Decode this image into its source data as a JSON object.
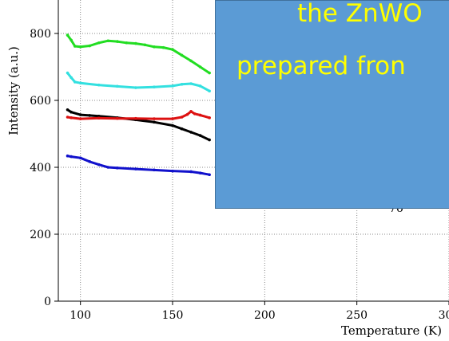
{
  "chart_data": {
    "type": "scatter",
    "xlabel": "Temperature (K)",
    "ylabel": "Intensity (a.u.)",
    "xlim": [
      88,
      300
    ],
    "ylim": [
      0,
      900
    ],
    "x_ticks": [
      100,
      150,
      200,
      250,
      300
    ],
    "y_ticks": [
      0,
      200,
      400,
      600,
      800
    ],
    "x_tick_labels": [
      "100",
      "150",
      "200",
      "250",
      "300"
    ],
    "y_tick_labels": [
      "0",
      "200",
      "400",
      "600",
      "800"
    ],
    "grid": true,
    "series": [
      {
        "color": "#22dd22",
        "x": [
          93,
          95,
          97,
          100,
          105,
          110,
          115,
          120,
          125,
          130,
          135,
          140,
          145,
          150,
          155,
          160,
          165,
          170
        ],
        "y": [
          795,
          780,
          762,
          760,
          763,
          772,
          778,
          776,
          772,
          770,
          766,
          760,
          758,
          752,
          735,
          718,
          700,
          682
        ]
      },
      {
        "color": "#33e0e0",
        "x": [
          93,
          95,
          97,
          100,
          110,
          120,
          130,
          140,
          150,
          155,
          160,
          165,
          170
        ],
        "y": [
          682,
          668,
          655,
          652,
          646,
          642,
          638,
          640,
          643,
          648,
          650,
          643,
          628
        ]
      },
      {
        "color": "#000000",
        "x": [
          93,
          95,
          100,
          105,
          110,
          120,
          130,
          140,
          150,
          155,
          160,
          165,
          170
        ],
        "y": [
          572,
          565,
          557,
          555,
          553,
          548,
          542,
          535,
          525,
          515,
          505,
          495,
          482
        ]
      },
      {
        "color": "#dd1111",
        "x": [
          93,
          95,
          100,
          110,
          120,
          130,
          140,
          150,
          155,
          158,
          160,
          162,
          165,
          170
        ],
        "y": [
          550,
          548,
          545,
          547,
          546,
          546,
          545,
          545,
          550,
          558,
          567,
          560,
          556,
          548
        ]
      },
      {
        "color": "#1111cc",
        "x": [
          93,
          95,
          100,
          105,
          110,
          115,
          120,
          130,
          140,
          150,
          160,
          165,
          170
        ],
        "y": [
          434,
          432,
          428,
          417,
          408,
          400,
          398,
          395,
          392,
          389,
          387,
          383,
          378
        ]
      }
    ],
    "annotations": [
      "76"
    ]
  },
  "overlay": {
    "lines": [
      "the ZnWO",
      "prepared fron"
    ]
  },
  "colors": {
    "overlay_fill": "#5b9bd5",
    "overlay_text": "#ffff00"
  }
}
